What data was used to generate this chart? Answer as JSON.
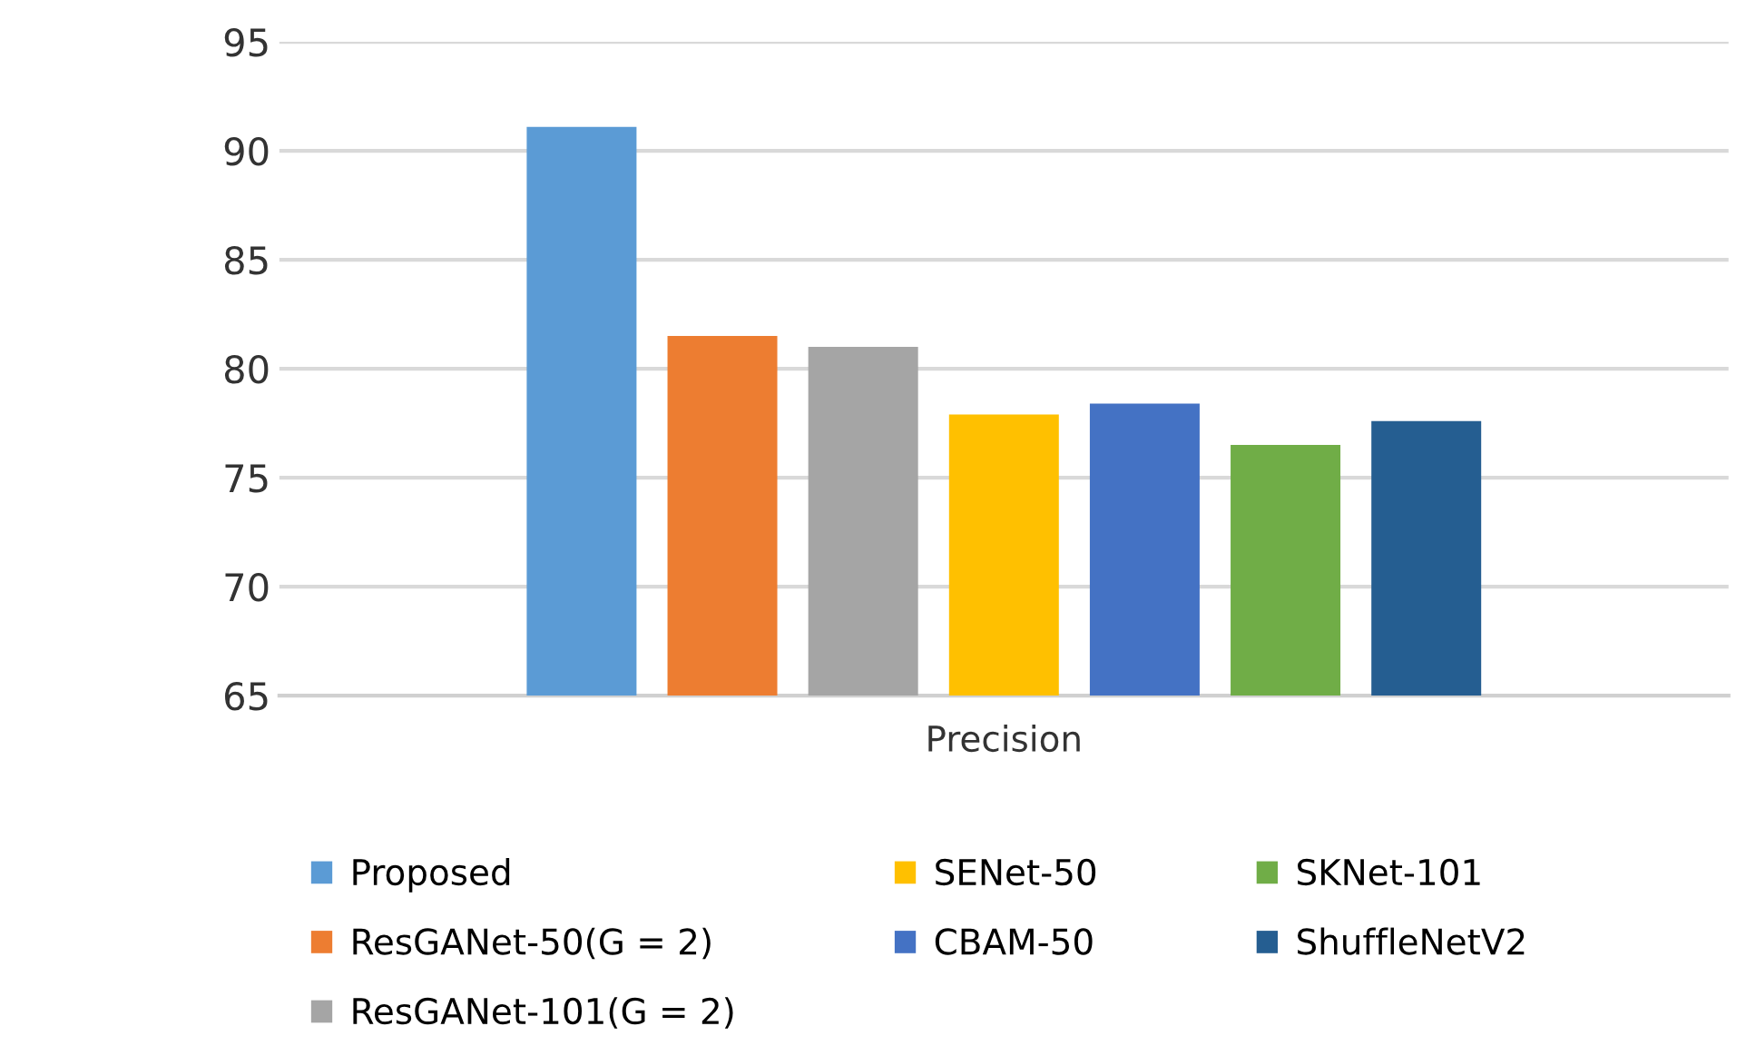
{
  "chart_data": {
    "type": "bar",
    "xlabel": "Precision",
    "categories": [
      null
    ],
    "series": [
      {
        "name": "Proposed",
        "color": "#5b9bd5",
        "values": [
          91.1
        ]
      },
      {
        "name": "ResGANet-50(G = 2)",
        "color": "#ed7d31",
        "values": [
          81.5
        ]
      },
      {
        "name": "ResGANet-101(G = 2)",
        "color": "#a5a5a5",
        "values": [
          81.0
        ]
      },
      {
        "name": "SENet-50",
        "color": "#ffc000",
        "values": [
          77.9
        ]
      },
      {
        "name": "CBAM-50",
        "color": "#4472c4",
        "values": [
          78.4
        ]
      },
      {
        "name": "SKNet-101",
        "color": "#70ad47",
        "values": [
          76.5
        ]
      },
      {
        "name": "ShuffleNetV2",
        "color": "#255e91",
        "values": [
          77.6
        ]
      }
    ],
    "ylim": [
      65,
      95
    ],
    "yticks": [
      65,
      70,
      75,
      80,
      85,
      90,
      95
    ],
    "grid": "y",
    "legend": "bottom"
  }
}
